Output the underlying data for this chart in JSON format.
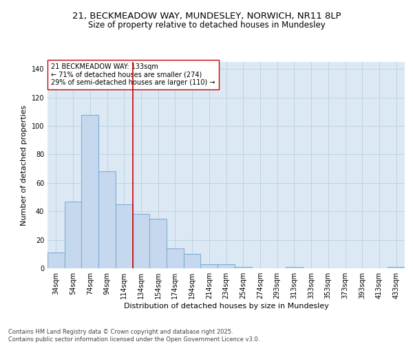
{
  "title_line1": "21, BECKMEADOW WAY, MUNDESLEY, NORWICH, NR11 8LP",
  "title_line2": "Size of property relative to detached houses in Mundesley",
  "xlabel": "Distribution of detached houses by size in Mundesley",
  "ylabel": "Number of detached properties",
  "background_color": "#dce9f5",
  "bar_color": "#c5d8ed",
  "bar_edge_color": "#7fafd4",
  "categories": [
    "34sqm",
    "54sqm",
    "74sqm",
    "94sqm",
    "114sqm",
    "134sqm",
    "154sqm",
    "174sqm",
    "194sqm",
    "214sqm",
    "234sqm",
    "254sqm",
    "274sqm",
    "293sqm",
    "313sqm",
    "333sqm",
    "353sqm",
    "373sqm",
    "393sqm",
    "413sqm",
    "433sqm"
  ],
  "values": [
    11,
    47,
    108,
    68,
    45,
    38,
    35,
    14,
    10,
    3,
    3,
    1,
    0,
    0,
    1,
    0,
    0,
    0,
    0,
    0,
    1
  ],
  "vline_color": "#cc0000",
  "vline_pos": 5,
  "annotation_text": "21 BECKMEADOW WAY: 133sqm\n← 71% of detached houses are smaller (274)\n29% of semi-detached houses are larger (110) →",
  "annotation_box_color": "#ffffff",
  "annotation_box_edge": "#cc0000",
  "ylim": [
    0,
    145
  ],
  "yticks": [
    0,
    20,
    40,
    60,
    80,
    100,
    120,
    140
  ],
  "footer": "Contains HM Land Registry data © Crown copyright and database right 2025.\nContains public sector information licensed under the Open Government Licence v3.0.",
  "title_fontsize": 9.5,
  "subtitle_fontsize": 8.5,
  "axis_label_fontsize": 8,
  "tick_fontsize": 7,
  "annotation_fontsize": 7,
  "footer_fontsize": 6
}
